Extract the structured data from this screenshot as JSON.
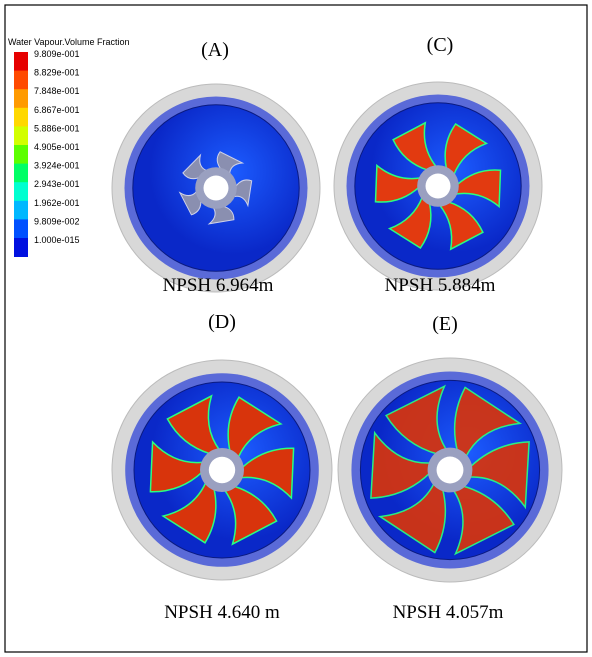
{
  "legend": {
    "title": "Water Vapour.Volume Fraction",
    "entries": [
      {
        "label": "9.809e-001",
        "color": "#e60000"
      },
      {
        "label": "8.829e-001",
        "color": "#ff4a00"
      },
      {
        "label": "7.848e-001",
        "color": "#ff9a00"
      },
      {
        "label": "6.867e-001",
        "color": "#ffd800"
      },
      {
        "label": "5.886e-001",
        "color": "#d2ff00"
      },
      {
        "label": "4.905e-001",
        "color": "#5cff00"
      },
      {
        "label": "3.924e-001",
        "color": "#00ff66"
      },
      {
        "label": "2.943e-001",
        "color": "#00ffd0"
      },
      {
        "label": "1.962e-001",
        "color": "#00b8ff"
      },
      {
        "label": "9.809e-002",
        "color": "#0050ff"
      },
      {
        "label": "1.000e-015",
        "color": "#0010e0"
      }
    ]
  },
  "panels": [
    {
      "label": "(A)",
      "caption": "NPSH 6.964m"
    },
    {
      "label": "(C)",
      "caption": "NPSH 5.884m"
    },
    {
      "label": "(D)",
      "caption": "NPSH 4.640 m"
    },
    {
      "label": "(E)",
      "caption": "NPSH 4.057m"
    }
  ]
}
